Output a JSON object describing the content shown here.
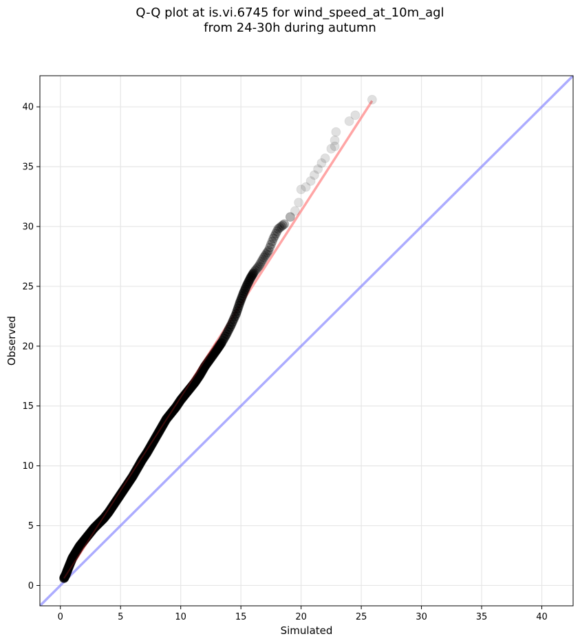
{
  "chart_data": {
    "type": "scatter",
    "title_line1": "Q-Q plot at is.vi.6745 for wind_speed_at_10m_agl",
    "title_line2": "from 24-30h during autumn",
    "xlabel": "Simulated",
    "ylabel": "Observed",
    "xlim": [
      -1.7,
      42.6
    ],
    "ylim": [
      -1.7,
      42.6
    ],
    "xticks": [
      0,
      5,
      10,
      15,
      20,
      25,
      30,
      35,
      40
    ],
    "yticks": [
      0,
      5,
      10,
      15,
      20,
      25,
      30,
      35,
      40
    ],
    "grid": true,
    "series": [
      {
        "points": [
          [
            0.3,
            0.6
          ],
          [
            0.45,
            0.9
          ],
          [
            0.6,
            1.3
          ],
          [
            0.8,
            1.8
          ],
          [
            1.0,
            2.3
          ],
          [
            1.3,
            2.8
          ],
          [
            1.6,
            3.3
          ],
          [
            2.0,
            3.8
          ],
          [
            2.4,
            4.3
          ],
          [
            2.8,
            4.8
          ],
          [
            3.2,
            5.2
          ],
          [
            3.6,
            5.6
          ],
          [
            4.0,
            6.1
          ],
          [
            4.4,
            6.7
          ],
          [
            4.8,
            7.3
          ],
          [
            5.2,
            7.9
          ],
          [
            5.6,
            8.5
          ],
          [
            6.0,
            9.1
          ],
          [
            6.4,
            9.8
          ],
          [
            6.8,
            10.5
          ],
          [
            7.2,
            11.1
          ],
          [
            7.6,
            11.8
          ],
          [
            8.0,
            12.5
          ],
          [
            8.4,
            13.2
          ],
          [
            8.8,
            13.9
          ],
          [
            9.2,
            14.4
          ],
          [
            9.6,
            14.9
          ],
          [
            10.0,
            15.5
          ],
          [
            10.4,
            16.0
          ],
          [
            10.8,
            16.5
          ],
          [
            11.2,
            17.0
          ],
          [
            11.6,
            17.6
          ],
          [
            12.0,
            18.3
          ],
          [
            12.5,
            19.0
          ],
          [
            13.0,
            19.7
          ],
          [
            13.4,
            20.3
          ],
          [
            13.8,
            21.0
          ],
          [
            14.2,
            21.8
          ],
          [
            14.6,
            22.7
          ],
          [
            14.9,
            23.6
          ],
          [
            15.2,
            24.4
          ],
          [
            15.5,
            25.1
          ],
          [
            15.8,
            25.7
          ],
          [
            16.1,
            26.2
          ],
          [
            16.5,
            26.7
          ],
          [
            16.9,
            27.4
          ],
          [
            17.3,
            28.0
          ],
          [
            17.7,
            29.0
          ],
          [
            18.1,
            29.8
          ],
          [
            18.6,
            30.2
          ],
          [
            19.1,
            30.8
          ],
          [
            19.5,
            31.3
          ],
          [
            19.8,
            32.0
          ],
          [
            20.0,
            33.1
          ],
          [
            20.4,
            33.3
          ],
          [
            20.8,
            33.8
          ],
          [
            21.1,
            34.3
          ],
          [
            21.4,
            34.8
          ],
          [
            21.7,
            35.3
          ],
          [
            22.0,
            35.7
          ],
          [
            22.5,
            36.5
          ],
          [
            22.8,
            36.7
          ],
          [
            22.8,
            37.2
          ],
          [
            22.9,
            37.9
          ],
          [
            24.0,
            38.8
          ],
          [
            24.5,
            39.3
          ],
          [
            25.9,
            40.6
          ]
        ]
      }
    ],
    "fit_line": {
      "x": [
        0.3,
        25.9
      ],
      "y": [
        0.6,
        40.5
      ],
      "color": "#ff7f7f"
    },
    "identity_line": {
      "x": [
        -1.7,
        42.6
      ],
      "y": [
        -1.7,
        42.6
      ],
      "color": "#7f7fff"
    },
    "point_color": "#000000"
  }
}
